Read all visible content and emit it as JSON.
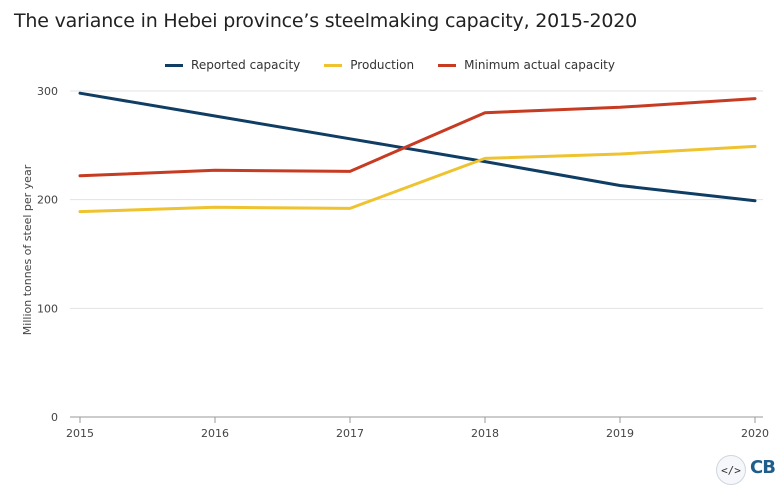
{
  "chart_data": {
    "type": "line",
    "title": "The variance in Hebei province’s steelmaking capacity, 2015-2020",
    "xlabel": "",
    "ylabel": "Million tonnes of steel per year",
    "x": [
      "2015",
      "2016",
      "2017",
      "2018",
      "2019",
      "2020"
    ],
    "ylim": [
      0,
      300
    ],
    "yticks": [
      0,
      100,
      200,
      300
    ],
    "grid": true,
    "legend_position": "top-center",
    "series": [
      {
        "name": "Reported capacity",
        "color": "#0f3d63",
        "values": [
          298,
          277,
          256,
          235,
          213,
          199
        ]
      },
      {
        "name": "Production",
        "color": "#eec32f",
        "values": [
          189,
          193,
          192,
          238,
          242,
          249
        ]
      },
      {
        "name": "Minimum actual capacity",
        "color": "#c63b22",
        "values": [
          222,
          227,
          226,
          280,
          285,
          293
        ]
      }
    ]
  },
  "footer": {
    "embed_icon": "</>",
    "logo_text": "CB"
  }
}
